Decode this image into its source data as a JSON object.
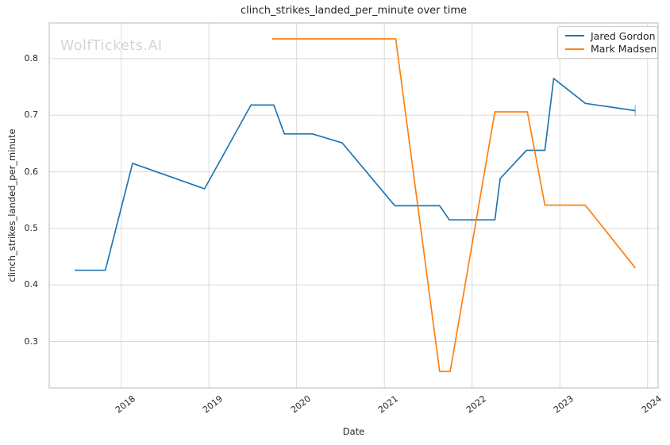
{
  "watermark": "WolfTickets.AI",
  "colors": {
    "background": "#ffffff",
    "grid": "#d9d9d9",
    "spine": "#c4c4c4",
    "text": "#262626",
    "watermark": "#d4d4d4",
    "series_blue": "#1f77b4",
    "series_orange": "#ff7f0e"
  },
  "chart_data": {
    "type": "line",
    "title": "clinch_strikes_landed_per_minute over time",
    "xlabel": "Date",
    "ylabel": "clinch_strikes_landed_per_minute",
    "xlim": [
      2017.18,
      2024.12
    ],
    "ylim": [
      0.218,
      0.863
    ],
    "x_ticks": [
      2018,
      2019,
      2020,
      2021,
      2022,
      2023,
      2024
    ],
    "y_ticks": [
      0.3,
      0.4,
      0.5,
      0.6,
      0.7,
      0.8
    ],
    "grid": true,
    "legend_position": "upper right",
    "series": [
      {
        "name": "Jared Gordon",
        "color": "#1f77b4",
        "end_tick": true,
        "x": [
          2017.47,
          2017.82,
          2018.13,
          2018.95,
          2019.48,
          2019.74,
          2019.86,
          2020.18,
          2020.52,
          2021.12,
          2021.63,
          2021.74,
          2022.26,
          2022.32,
          2022.62,
          2022.83,
          2022.93,
          2023.29,
          2023.86
        ],
        "y": [
          0.426,
          0.426,
          0.615,
          0.57,
          0.718,
          0.718,
          0.667,
          0.667,
          0.651,
          0.54,
          0.54,
          0.515,
          0.515,
          0.588,
          0.638,
          0.638,
          0.765,
          0.721,
          0.708
        ]
      },
      {
        "name": "Mark Madsen",
        "color": "#ff7f0e",
        "end_tick": false,
        "x": [
          2019.72,
          2021.13,
          2021.63,
          2021.75,
          2022.26,
          2022.63,
          2022.83,
          2023.29,
          2023.86
        ],
        "y": [
          0.835,
          0.835,
          0.247,
          0.247,
          0.706,
          0.706,
          0.541,
          0.541,
          0.43
        ]
      }
    ]
  }
}
